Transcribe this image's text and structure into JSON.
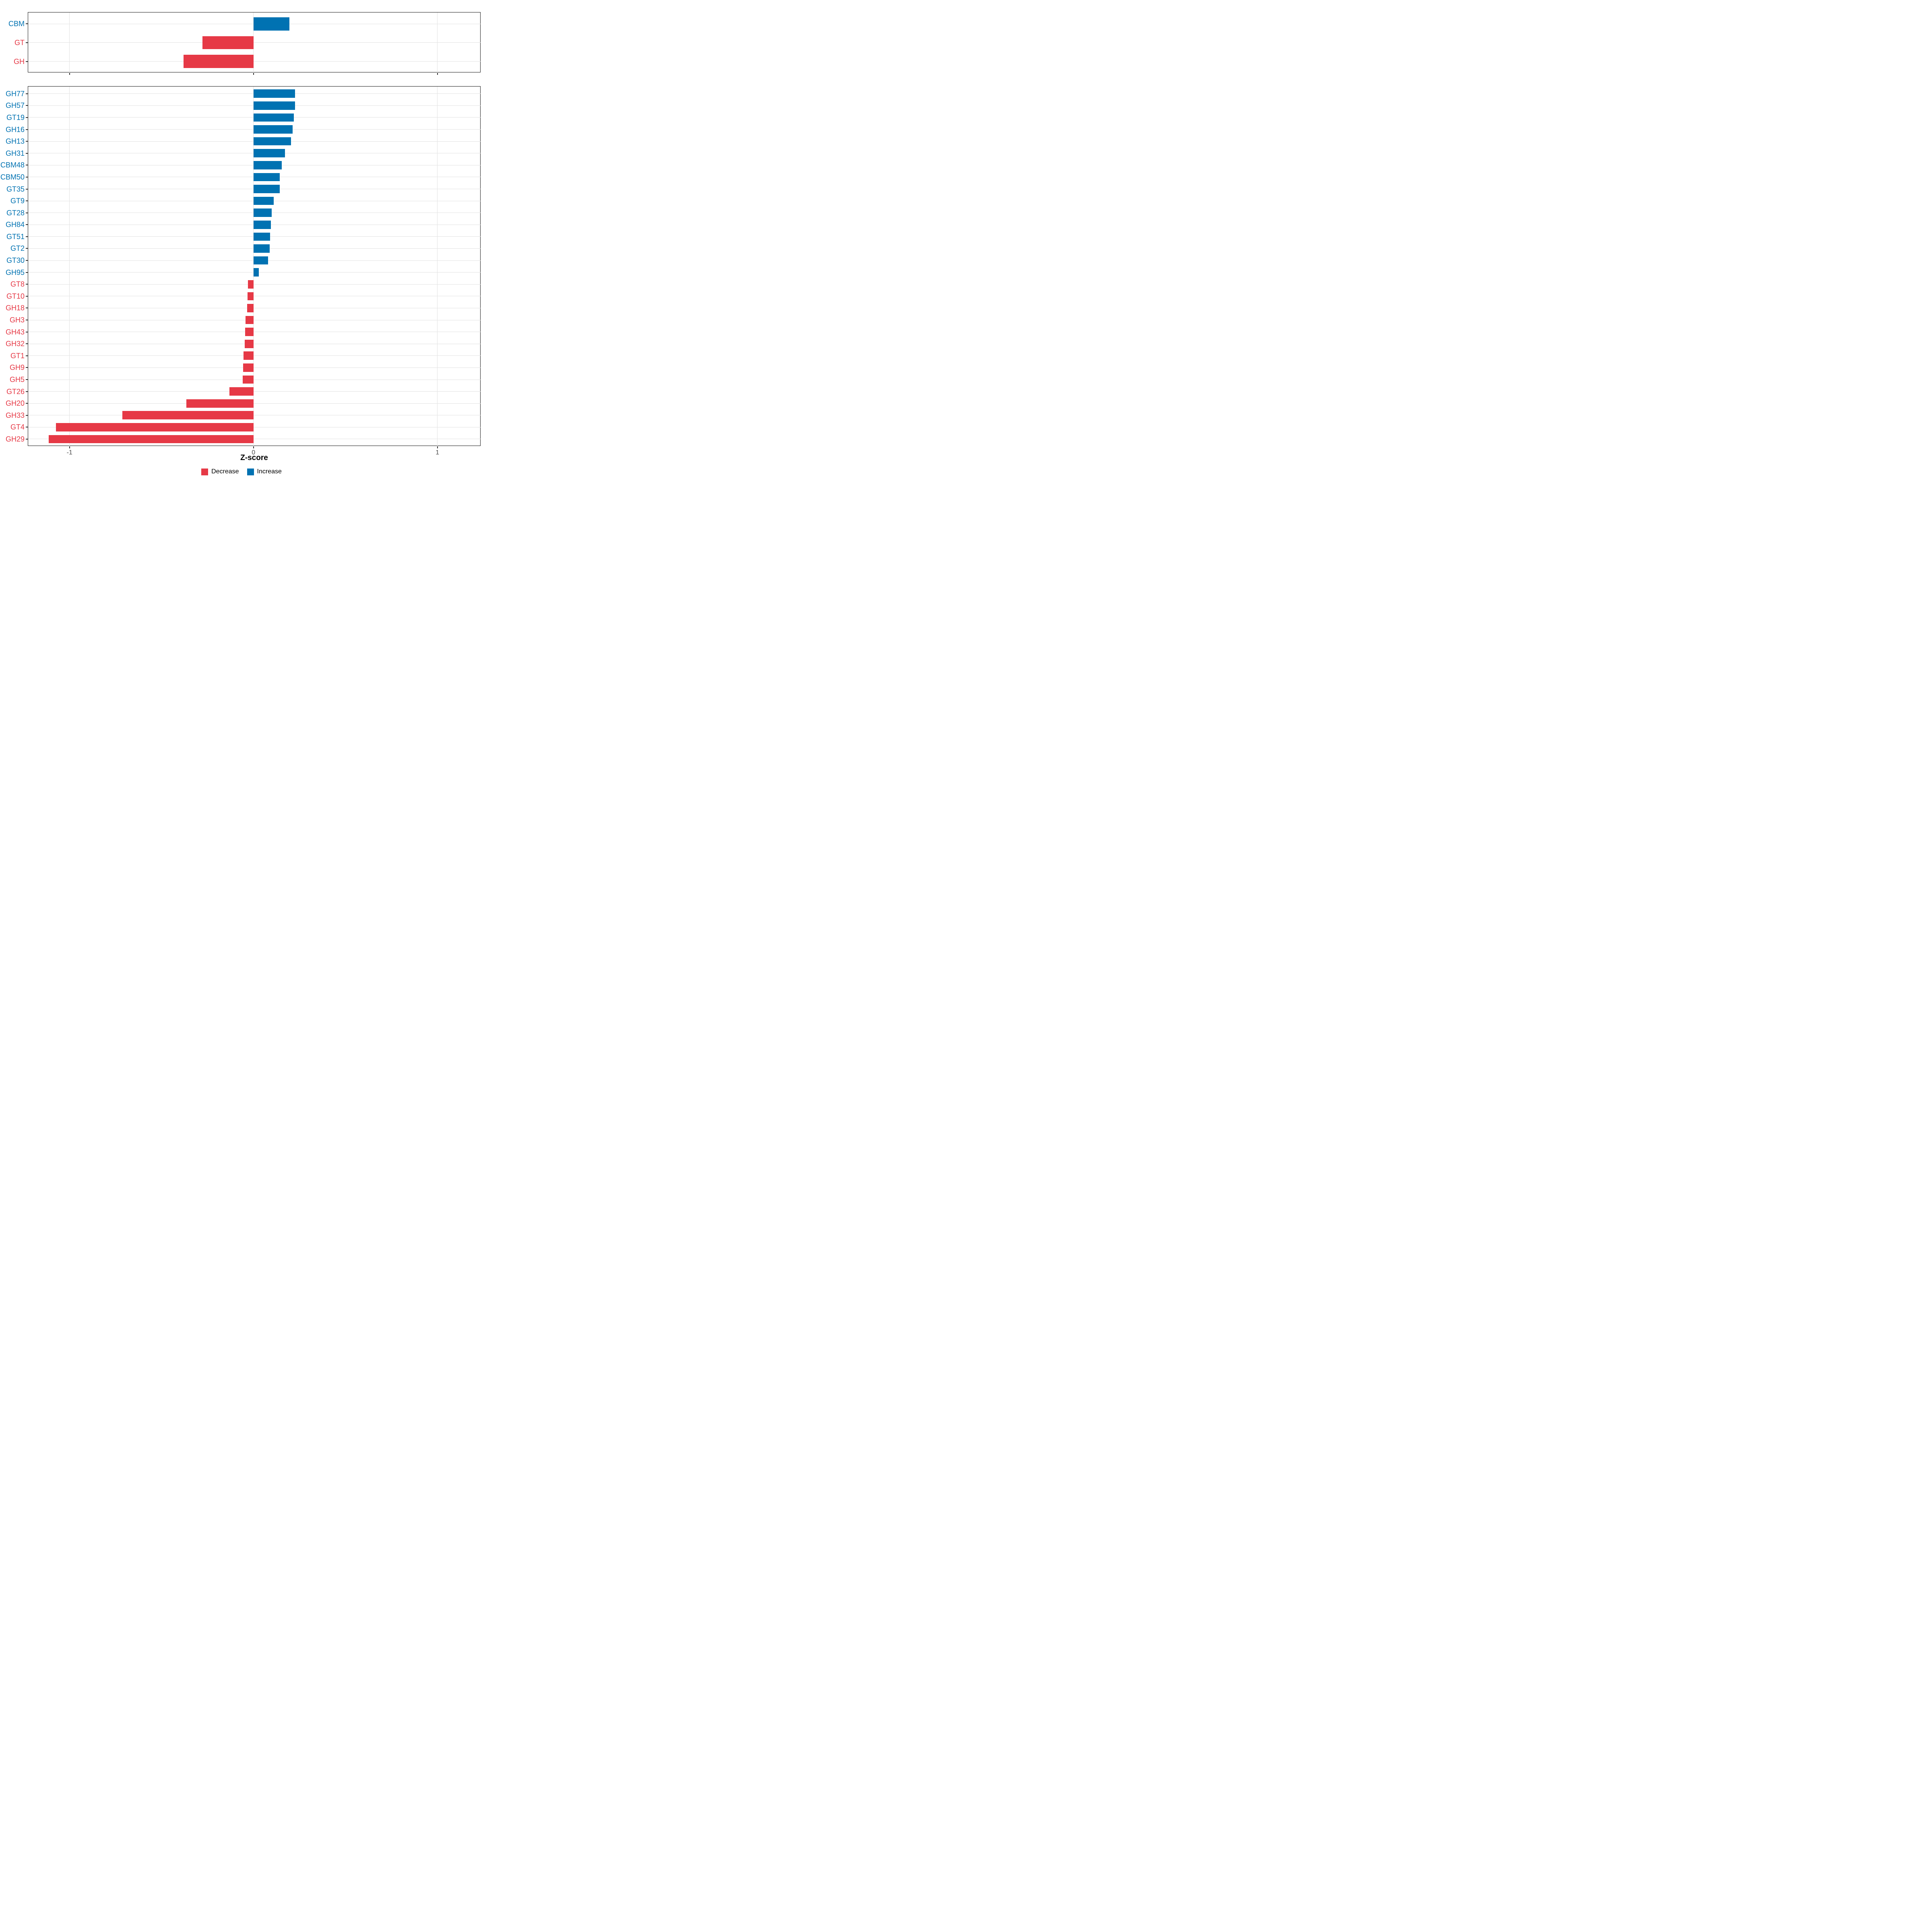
{
  "chart_data": {
    "type": "bar",
    "orientation": "horizontal",
    "xlabel": "Z-score",
    "x_ticks": [
      {
        "value": -1,
        "label": "-1"
      },
      {
        "value": 0,
        "label": "0"
      },
      {
        "value": 1,
        "label": "1"
      }
    ],
    "xlim": [
      -1.225,
      1.237
    ],
    "grid": "on",
    "legend_position": "bottom",
    "colors": {
      "decrease": "#E63946",
      "increase": "#0072B2",
      "gridline": "#E2E2E2",
      "axis_text": "#4D4D4D",
      "panel_border": "#1A1A1A"
    },
    "legend": [
      {
        "key": "decrease",
        "label": "Decrease"
      },
      {
        "key": "increase",
        "label": "Increase"
      }
    ],
    "panels": [
      {
        "name": "enzyme-classes",
        "categories": [
          "CBM",
          "GT",
          "GH"
        ],
        "values": [
          0.195,
          -0.277,
          -0.381
        ]
      },
      {
        "name": "enzyme-families",
        "categories": [
          "GH77",
          "GH57",
          "GT19",
          "GH16",
          "GH13",
          "GH31",
          "CBM48",
          "CBM50",
          "GT35",
          "GT9",
          "GT28",
          "GH84",
          "GT51",
          "GT2",
          "GT30",
          "GH95",
          "GT8",
          "GT10",
          "GH18",
          "GH3",
          "GH43",
          "GH32",
          "GT1",
          "GH9",
          "GH5",
          "GT26",
          "GH20",
          "GH33",
          "GT4",
          "GH29"
        ],
        "values": [
          0.227,
          0.225,
          0.219,
          0.213,
          0.204,
          0.171,
          0.153,
          0.143,
          0.142,
          0.11,
          0.1,
          0.095,
          0.09,
          0.088,
          0.079,
          0.029,
          -0.031,
          -0.032,
          -0.034,
          -0.044,
          -0.046,
          -0.047,
          -0.055,
          -0.056,
          -0.058,
          -0.13,
          -0.364,
          -0.712,
          -1.073,
          -1.113
        ]
      }
    ]
  }
}
